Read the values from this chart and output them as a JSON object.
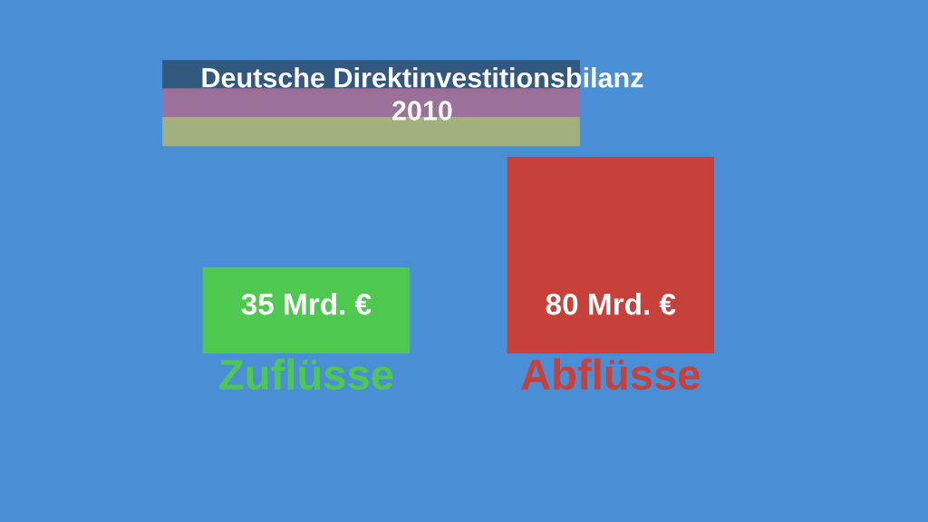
{
  "chart_data": {
    "type": "bar",
    "title": "Deutsche Direktinvestitionsbilanz\n2010",
    "categories": [
      "Zuflüsse",
      "Abflüsse"
    ],
    "values": [
      35,
      80
    ],
    "colors": [
      "#4fc84f",
      "#c8403a"
    ],
    "value_labels": [
      "35 Mrd. €",
      "80 Mrd. €"
    ],
    "grid": false,
    "legend": false
  }
}
